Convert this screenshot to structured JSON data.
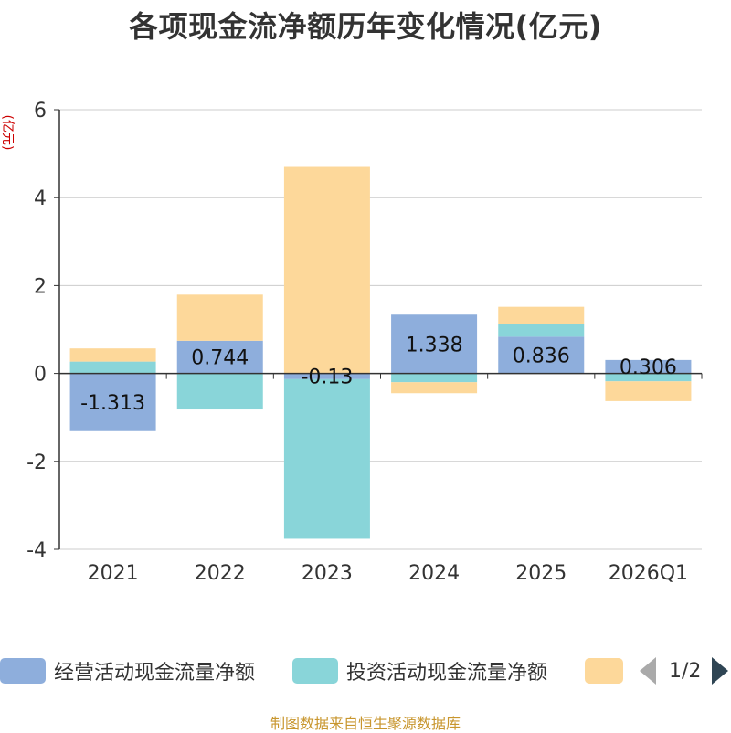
{
  "title": "各项现金流净额历年变化情况(亿元)",
  "source": "制图数据来自恒生聚源数据库",
  "legend": {
    "pager": "1/2"
  },
  "chart_data": {
    "type": "bar",
    "stacked": true,
    "title": "各项现金流净额历年变化情况(亿元)",
    "ylabel": "(亿元)",
    "categories": [
      "2021",
      "2022",
      "2023",
      "2024",
      "2025",
      "2026Q1"
    ],
    "ylim": [
      -4,
      6
    ],
    "yticks": [
      -4,
      -2,
      0,
      2,
      4,
      6
    ],
    "grid": true,
    "legend_position": "bottom",
    "series": [
      {
        "name": "经营活动现金流量净额",
        "color": "#8eaedc",
        "values": [
          -1.313,
          0.744,
          -0.13,
          1.338,
          0.836,
          0.306
        ],
        "labels": [
          "-1.313",
          "0.744",
          "-0.13",
          "1.338",
          "0.836",
          "0.306"
        ]
      },
      {
        "name": "投资活动现金流量净额",
        "color": "#89d5d9",
        "values": [
          0.27,
          -0.82,
          -3.63,
          -0.2,
          0.29,
          -0.18
        ],
        "labels": []
      },
      {
        "name": "",
        "color": "#fdd89a",
        "values": [
          0.3,
          1.05,
          4.7,
          -0.25,
          0.39,
          -0.45
        ],
        "labels": []
      }
    ]
  }
}
